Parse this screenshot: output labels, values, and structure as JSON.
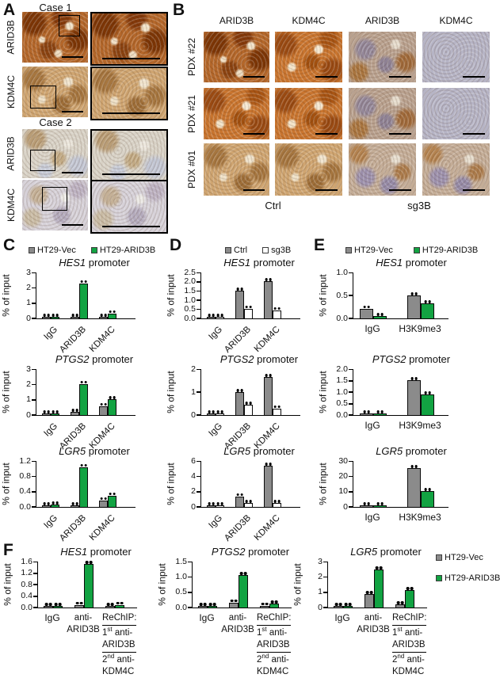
{
  "panel_a": {
    "label": "A",
    "case1": "Case 1",
    "case2": "Case 2",
    "row_labels": [
      "ARID3B",
      "KDM4C",
      "ARID3B",
      "KDM4C"
    ]
  },
  "panel_b": {
    "label": "B",
    "col_headers": [
      "ARID3B",
      "KDM4C",
      "ARID3B",
      "KDM4C"
    ],
    "row_labels": [
      "PDX #22",
      "PDX #21",
      "PDX #01"
    ],
    "group_labels": [
      "Ctrl",
      "sg3B"
    ]
  },
  "panel_c": {
    "label": "C",
    "legend": [
      {
        "label": "HT29-Vec",
        "swatch": "gray"
      },
      {
        "label": "HT29-ARID3B",
        "swatch": "green"
      }
    ]
  },
  "panel_d": {
    "label": "D",
    "legend": [
      {
        "label": "Ctrl",
        "swatch": "gray"
      },
      {
        "label": "sg3B",
        "swatch": "white"
      }
    ]
  },
  "panel_e": {
    "label": "E",
    "legend": [
      {
        "label": "HT29-Vec",
        "swatch": "gray"
      },
      {
        "label": "HT29-ARID3B",
        "swatch": "green"
      }
    ]
  },
  "panel_f": {
    "label": "F",
    "legend": [
      {
        "label": "HT29-Vec",
        "swatch": "gray"
      },
      {
        "label": "HT29-ARID3B",
        "swatch": "green"
      }
    ]
  },
  "colors": {
    "green": "#12a342",
    "gray": "#8b8b8b"
  },
  "chart_data": [
    {
      "id": "C-HES1",
      "type": "bar",
      "layout": "cd",
      "title_italic": "HES1",
      "title_rest": " promoter",
      "ylabel": "% of input",
      "ymax": 3,
      "yticks": [
        "0",
        "1",
        "2",
        "3"
      ],
      "categories": [
        "IgG",
        "ARID3B",
        "KDM4C"
      ],
      "series": [
        {
          "name": "HT29-Vec",
          "color": "gray",
          "values": [
            0.02,
            0.08,
            0.08
          ]
        },
        {
          "name": "HT29-ARID3B",
          "color": "green",
          "values": [
            0.02,
            2.3,
            0.35
          ]
        }
      ]
    },
    {
      "id": "C-PTGS2",
      "type": "bar",
      "layout": "cd",
      "title_italic": "PTGS2",
      "title_rest": " promoter",
      "ylabel": "% of input",
      "ymax": 3,
      "yticks": [
        "0",
        "1",
        "2",
        "3"
      ],
      "categories": [
        "IgG",
        "ARID3B",
        "KDM4C"
      ],
      "series": [
        {
          "name": "HT29-Vec",
          "color": "gray",
          "values": [
            0.02,
            0.2,
            0.6
          ]
        },
        {
          "name": "HT29-ARID3B",
          "color": "green",
          "values": [
            0.02,
            2.05,
            1.05
          ]
        }
      ]
    },
    {
      "id": "C-LGR5",
      "type": "bar",
      "layout": "cd",
      "title_italic": "LGR5",
      "title_rest": " promoter",
      "ylabel": "% of input",
      "ymax": 1.2,
      "yticks": [
        "0.0",
        "0.4",
        "0.8",
        "1.2"
      ],
      "categories": [
        "IgG",
        "ARID3B",
        "KDM4C"
      ],
      "series": [
        {
          "name": "HT29-Vec",
          "color": "gray",
          "values": [
            0.02,
            0.03,
            0.18
          ]
        },
        {
          "name": "HT29-ARID3B",
          "color": "green",
          "values": [
            0.07,
            1.05,
            0.3
          ]
        }
      ]
    },
    {
      "id": "D-HES1",
      "type": "bar",
      "layout": "cd",
      "title_italic": "HES1",
      "title_rest": " promoter",
      "ylabel": "% of input",
      "ymax": 2.5,
      "yticks": [
        "0.0",
        "0.5",
        "1.0",
        "1.5",
        "2.0",
        "2.5"
      ],
      "categories": [
        "IgG",
        "ARID3B",
        "KDM4C"
      ],
      "series": [
        {
          "name": "Ctrl",
          "color": "gray",
          "values": [
            0.02,
            1.52,
            2.02
          ]
        },
        {
          "name": "sg3B",
          "color": "white",
          "values": [
            0.02,
            0.55,
            0.45
          ]
        }
      ]
    },
    {
      "id": "D-PTGS2",
      "type": "bar",
      "layout": "cd",
      "title_italic": "PTGS2",
      "title_rest": " promoter",
      "ylabel": "% of input",
      "ymax": 2,
      "yticks": [
        "0",
        "1",
        "2"
      ],
      "categories": [
        "IgG",
        "ARID3B",
        "KDM4C"
      ],
      "series": [
        {
          "name": "Ctrl",
          "color": "gray",
          "values": [
            0.02,
            1.0,
            1.65
          ]
        },
        {
          "name": "sg3B",
          "color": "white",
          "values": [
            0.02,
            0.45,
            0.3
          ]
        }
      ]
    },
    {
      "id": "D-LGR5",
      "type": "bar",
      "layout": "cd",
      "title_italic": "LGR5",
      "title_rest": " promoter",
      "ylabel": "% of input",
      "ymax": 6,
      "yticks": [
        "0",
        "2",
        "4",
        "6"
      ],
      "categories": [
        "IgG",
        "ARID3B",
        "KDM4C"
      ],
      "series": [
        {
          "name": "Ctrl",
          "color": "gray",
          "values": [
            0.06,
            1.4,
            5.4
          ]
        },
        {
          "name": "sg3B",
          "color": "white",
          "values": [
            0.06,
            0.5,
            0.5
          ]
        }
      ]
    },
    {
      "id": "E-HES1",
      "type": "bar",
      "layout": "e",
      "title_italic": "HES1",
      "title_rest": " promoter",
      "ylabel": "% of input",
      "ymax": 1,
      "yticks": [
        "0.0",
        "0.5",
        "1.0"
      ],
      "categories": [
        "IgG",
        "H3K9me3"
      ],
      "series": [
        {
          "name": "HT29-Vec",
          "color": "gray",
          "values": [
            0.22,
            0.5
          ]
        },
        {
          "name": "HT29-ARID3B",
          "color": "green",
          "values": [
            0.05,
            0.33
          ]
        }
      ]
    },
    {
      "id": "E-PTGS2",
      "type": "bar",
      "layout": "e",
      "title_italic": "PTGS2",
      "title_rest": " promoter",
      "ylabel": "% of input",
      "ymax": 2,
      "yticks": [
        "0.0",
        "0.5",
        "1.0",
        "1.5",
        "2.0"
      ],
      "categories": [
        "IgG",
        "H3K9me3"
      ],
      "series": [
        {
          "name": "HT29-Vec",
          "color": "gray",
          "values": [
            0.03,
            1.52
          ]
        },
        {
          "name": "HT29-ARID3B",
          "color": "green",
          "values": [
            0.06,
            0.9
          ]
        }
      ]
    },
    {
      "id": "E-LGR5",
      "type": "bar",
      "layout": "e",
      "title_italic": "LGR5",
      "title_rest": " promoter",
      "ylabel": "% of input",
      "ymax": 30,
      "yticks": [
        "0",
        "10",
        "20",
        "30"
      ],
      "categories": [
        "IgG",
        "H3K9me3"
      ],
      "series": [
        {
          "name": "HT29-Vec",
          "color": "gray",
          "values": [
            0.4,
            25.5
          ]
        },
        {
          "name": "HT29-ARID3B",
          "color": "green",
          "values": [
            0.4,
            10.5
          ]
        }
      ]
    },
    {
      "id": "F-HES1",
      "type": "bar",
      "layout": "f",
      "title_italic": "HES1",
      "title_rest": " promoter",
      "ylabel": "% of input",
      "ymax": 1.6,
      "yticks": [
        "0.0",
        "0.4",
        "0.8",
        "1.2",
        "1.6"
      ],
      "categories": [
        "IgG",
        {
          "align": "center",
          "lines": [
            {
              "parts": [
                {
                  "t": "anti-"
                }
              ]
            },
            {
              "parts": [
                {
                  "t": "ARID3B"
                }
              ]
            }
          ]
        },
        {
          "align": "left",
          "lines": [
            {
              "ul": true,
              "parts": [
                {
                  "t": "ReChIP:"
                }
              ]
            },
            {
              "parts": [
                {
                  "t": "1"
                },
                {
                  "t": "st",
                  "sup": true
                },
                {
                  "t": " anti-"
                }
              ]
            },
            {
              "ul": true,
              "parts": [
                {
                  "t": "ARID3B"
                }
              ]
            },
            {
              "parts": [
                {
                  "t": "2"
                },
                {
                  "t": "nd",
                  "sup": true
                },
                {
                  "t": " anti-"
                }
              ]
            },
            {
              "parts": [
                {
                  "t": "KDM4C"
                }
              ]
            }
          ]
        }
      ],
      "series": [
        {
          "name": "HT29-Vec",
          "color": "gray",
          "values": [
            0.03,
            0.1,
            0.06
          ]
        },
        {
          "name": "HT29-ARID3B",
          "color": "green",
          "values": [
            0.03,
            1.52,
            0.1
          ]
        }
      ]
    },
    {
      "id": "F-PTGS2",
      "type": "bar",
      "layout": "f",
      "title_italic": "PTGS2",
      "title_rest": " promoter",
      "ylabel": "% of input",
      "ymax": 1.5,
      "yticks": [
        "0.0",
        "0.5",
        "1.0",
        "1.5"
      ],
      "categories": [
        "IgG",
        {
          "align": "center",
          "lines": [
            {
              "parts": [
                {
                  "t": "anti-"
                }
              ]
            },
            {
              "parts": [
                {
                  "t": "ARID3B"
                }
              ]
            }
          ]
        },
        {
          "align": "left",
          "lines": [
            {
              "ul": true,
              "parts": [
                {
                  "t": "ReChIP:"
                }
              ]
            },
            {
              "parts": [
                {
                  "t": "1"
                },
                {
                  "t": "st",
                  "sup": true
                },
                {
                  "t": " anti-"
                }
              ]
            },
            {
              "ul": true,
              "parts": [
                {
                  "t": "ARID3B"
                }
              ]
            },
            {
              "parts": [
                {
                  "t": "2"
                },
                {
                  "t": "nd",
                  "sup": true
                },
                {
                  "t": " anti-"
                }
              ]
            },
            {
              "parts": [
                {
                  "t": "KDM4C"
                }
              ]
            }
          ]
        }
      ],
      "series": [
        {
          "name": "HT29-Vec",
          "color": "gray",
          "values": [
            0.04,
            0.17,
            0.07
          ]
        },
        {
          "name": "HT29-ARID3B",
          "color": "green",
          "values": [
            0.06,
            1.07,
            0.13
          ]
        }
      ]
    },
    {
      "id": "F-LGR5",
      "type": "bar",
      "layout": "f",
      "title_italic": "LGR5",
      "title_rest": " promoter",
      "ylabel": "% of input",
      "ymax": 3,
      "yticks": [
        "0",
        "1",
        "2",
        "3"
      ],
      "categories": [
        "IgG",
        {
          "align": "center",
          "lines": [
            {
              "parts": [
                {
                  "t": "anti-"
                }
              ]
            },
            {
              "parts": [
                {
                  "t": "ARID3B"
                }
              ]
            }
          ]
        },
        {
          "align": "left",
          "lines": [
            {
              "ul": true,
              "parts": [
                {
                  "t": "ReChIP:"
                }
              ]
            },
            {
              "parts": [
                {
                  "t": "1"
                },
                {
                  "t": "st",
                  "sup": true
                },
                {
                  "t": " anti-"
                }
              ]
            },
            {
              "ul": true,
              "parts": [
                {
                  "t": "ARID3B"
                }
              ]
            },
            {
              "parts": [
                {
                  "t": "2"
                },
                {
                  "t": "nd",
                  "sup": true
                },
                {
                  "t": " anti-"
                }
              ]
            },
            {
              "parts": [
                {
                  "t": "KDM4C"
                }
              ]
            }
          ]
        }
      ],
      "series": [
        {
          "name": "HT29-Vec",
          "color": "gray",
          "values": [
            0.07,
            0.9,
            0.2
          ]
        },
        {
          "name": "HT29-ARID3B",
          "color": "green",
          "values": [
            0.07,
            2.5,
            1.15
          ]
        }
      ]
    }
  ]
}
